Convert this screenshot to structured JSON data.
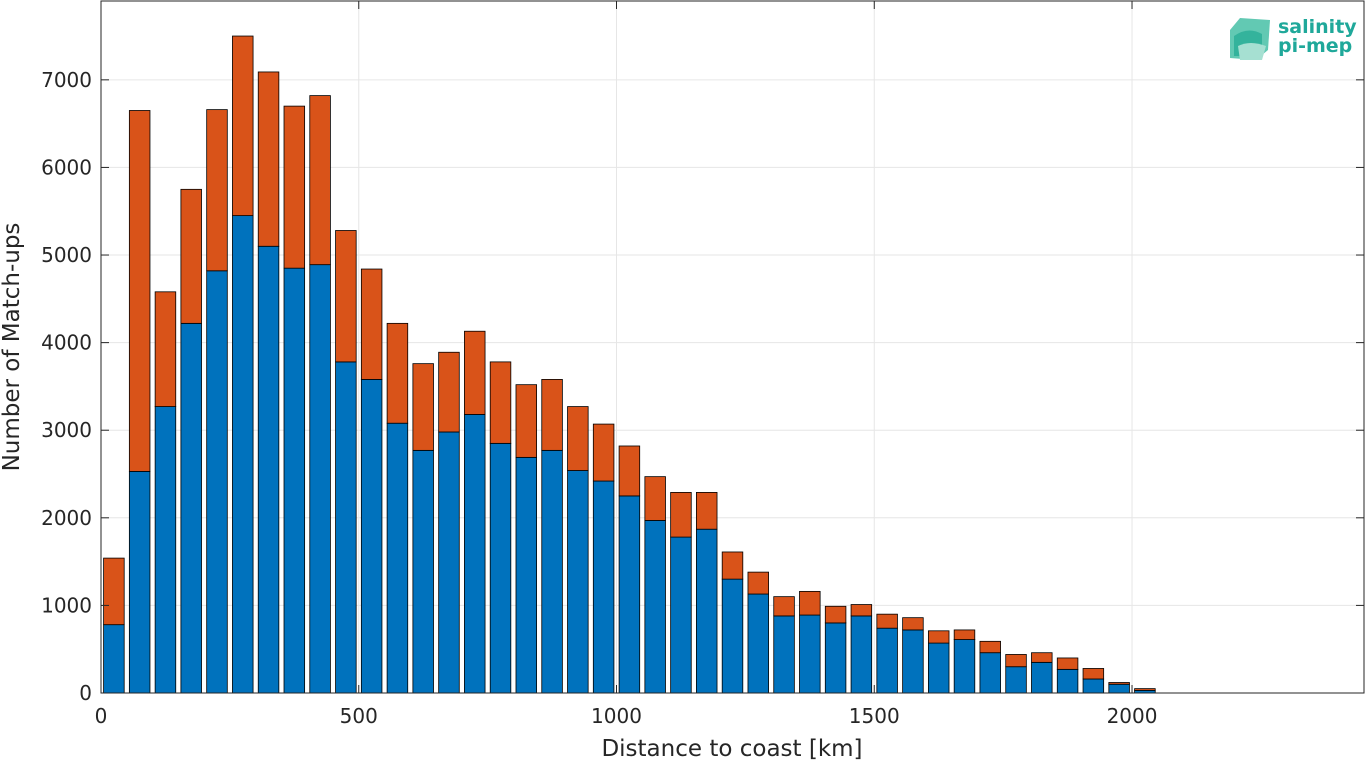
{
  "chart_data": {
    "type": "bar",
    "stacked": true,
    "xlabel": "Distance to coast [km]",
    "ylabel": "Number of Match-ups",
    "xlim": [
      0,
      2450
    ],
    "ylim": [
      0,
      7900
    ],
    "xticks": [
      0,
      500,
      1000,
      1500,
      2000
    ],
    "yticks": [
      0,
      1000,
      2000,
      3000,
      4000,
      5000,
      6000,
      7000
    ],
    "grid": true,
    "bin_width_km": 50,
    "bar_fraction": 0.8,
    "x": [
      25,
      75,
      125,
      175,
      225,
      275,
      325,
      375,
      425,
      475,
      525,
      575,
      625,
      675,
      725,
      775,
      825,
      875,
      925,
      975,
      1025,
      1075,
      1125,
      1175,
      1225,
      1275,
      1325,
      1375,
      1425,
      1475,
      1525,
      1575,
      1625,
      1675,
      1725,
      1775,
      1825,
      1875,
      1925,
      1975,
      2025,
      2075,
      2125,
      2175,
      2225,
      2275,
      2325
    ],
    "series": [
      {
        "color": "#0072bd",
        "values": [
          780,
          2530,
          3270,
          4220,
          4820,
          5450,
          5100,
          4850,
          4890,
          3780,
          3580,
          3080,
          2770,
          2980,
          3180,
          2850,
          2690,
          2770,
          2540,
          2420,
          2250,
          1970,
          1780,
          1870,
          1300,
          1130,
          880,
          890,
          800,
          880,
          740,
          720,
          570,
          610,
          460,
          300,
          350,
          270,
          160,
          100,
          30,
          0,
          0,
          0,
          0,
          0,
          0
        ]
      },
      {
        "color": "#d95319",
        "values": [
          760,
          4120,
          1310,
          1530,
          1840,
          2050,
          1990,
          1850,
          1930,
          1500,
          1260,
          1140,
          990,
          910,
          950,
          930,
          830,
          810,
          730,
          650,
          570,
          500,
          510,
          420,
          310,
          250,
          220,
          270,
          190,
          130,
          160,
          140,
          140,
          110,
          130,
          140,
          110,
          130,
          120,
          20,
          20,
          0,
          0,
          0,
          0,
          0,
          0
        ]
      }
    ]
  },
  "logo": {
    "line1": "salinity",
    "line2": "pi-mep"
  }
}
